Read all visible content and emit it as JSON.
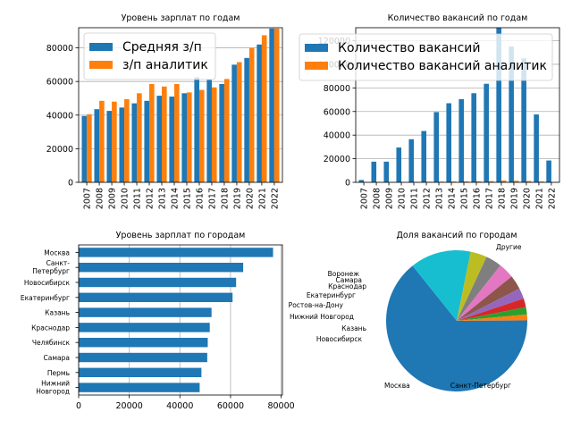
{
  "colors": {
    "blue": "#1f77b4",
    "orange": "#ff7f0e",
    "grid": "#b0b0b0"
  },
  "chart_data": [
    {
      "type": "bar",
      "title": "Уровень зарплат по годам",
      "categories": [
        "2007",
        "2008",
        "2009",
        "2010",
        "2011",
        "2012",
        "2013",
        "2014",
        "2015",
        "2016",
        "2017",
        "2018",
        "2019",
        "2020",
        "2021",
        "2022"
      ],
      "series": [
        {
          "name": "Средняя з/п",
          "color": "#1f77b4",
          "values": [
            39500,
            43500,
            42500,
            44500,
            47000,
            48500,
            51500,
            51000,
            53000,
            62500,
            61000,
            58500,
            70000,
            74000,
            82000,
            91500
          ]
        },
        {
          "name": "з/п аналитик",
          "color": "#ff7f0e",
          "values": [
            40500,
            48500,
            48000,
            49500,
            53000,
            58500,
            57000,
            58500,
            53500,
            55000,
            56500,
            61500,
            71500,
            80000,
            87500,
            91500
          ]
        }
      ],
      "yticks": [
        0,
        20000,
        40000,
        60000,
        80000
      ],
      "ylim": [
        0,
        92000
      ],
      "grid": "y",
      "legend": "top-left"
    },
    {
      "type": "bar",
      "title": "Количество вакансий по годам",
      "categories": [
        "2007",
        "2008",
        "2009",
        "2010",
        "2011",
        "2012",
        "2013",
        "2014",
        "2015",
        "2016",
        "2017",
        "2018",
        "2019",
        "2020",
        "2021",
        "2022"
      ],
      "series": [
        {
          "name": "Количество вакансий",
          "color": "#1f77b4",
          "values": [
            2000,
            17500,
            17500,
            29500,
            36500,
            43500,
            59500,
            67000,
            70500,
            75500,
            83500,
            131000,
            115000,
            105000,
            57500,
            18500
          ]
        },
        {
          "name": "Количество вакансий аналитик",
          "color": "#ff7f0e",
          "values": [
            0,
            100,
            150,
            300,
            400,
            500,
            600,
            700,
            800,
            900,
            1000,
            1500,
            1300,
            1100,
            700,
            200
          ]
        }
      ],
      "yticks": [
        0,
        20000,
        40000,
        60000,
        80000,
        100000,
        120000
      ],
      "ylim": [
        0,
        131000
      ],
      "grid": "y",
      "legend": "top-left"
    },
    {
      "type": "barh",
      "title": "Уровень зарплат по городам",
      "categories": [
        "Москва",
        "Санкт-Петербург",
        "Новосибирск",
        "Екатеринбург",
        "Казань",
        "Краснодар",
        "Челябинск",
        "Самара",
        "Пермь",
        "Нижний Новгород"
      ],
      "values": [
        76800,
        65000,
        62200,
        60800,
        52500,
        51800,
        51000,
        50800,
        48500,
        47800
      ],
      "xticks": [
        0,
        20000,
        40000,
        60000,
        80000
      ],
      "xlim": [
        0,
        80500
      ],
      "grid": "x"
    },
    {
      "type": "pie",
      "title": "Доля вакансий по городам",
      "labels": [
        "Москва",
        "Санкт-Петербург",
        "Новосибирск",
        "Казань",
        "Нижний Новгород",
        "Ростов-на-Дону",
        "Екатеринбург",
        "Краснодар",
        "Самара",
        "Воронеж",
        "Другие"
      ],
      "values": [
        57.7,
        12.5,
        3.4,
        3.3,
        3.2,
        2.9,
        2.2,
        1.8,
        1.5,
        1.2,
        0.1
      ],
      "colors": [
        "#1f77b4",
        "#17becf",
        "#bcbd22",
        "#7f7f7f",
        "#e377c2",
        "#8c564b",
        "#9467bd",
        "#d62728",
        "#2ca02c",
        "#ff7f0e",
        "#1f77b4"
      ]
    }
  ]
}
